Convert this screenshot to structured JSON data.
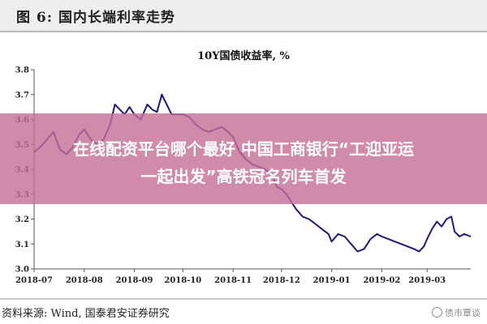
{
  "figure_title": "图 6:  国内长端利率走势",
  "chart_data": {
    "type": "line",
    "title": "10Y国债收益率,  %",
    "ylim": [
      3.0,
      3.8
    ],
    "y_ticks": [
      "3.0",
      "3.1",
      "3.2",
      "3.3",
      "3.4",
      "3.5",
      "3.6",
      "3.7",
      "3.8"
    ],
    "x_ticks": [
      "2018-07",
      "2018-08",
      "2018-09",
      "2018-10",
      "2018-11",
      "2018-12",
      "2019-01",
      "2019-02",
      "2019-03"
    ],
    "x_tick_days": [
      0,
      31,
      62,
      92,
      123,
      153,
      184,
      215,
      243
    ],
    "x_range_days": [
      0,
      270
    ],
    "series": [
      {
        "color": "#1f1a7a",
        "points": [
          [
            0,
            3.47
          ],
          [
            4,
            3.49
          ],
          [
            8,
            3.52
          ],
          [
            12,
            3.55
          ],
          [
            16,
            3.48
          ],
          [
            20,
            3.46
          ],
          [
            24,
            3.49
          ],
          [
            28,
            3.54
          ],
          [
            31,
            3.56
          ],
          [
            35,
            3.52
          ],
          [
            39,
            3.5
          ],
          [
            43,
            3.52
          ],
          [
            47,
            3.58
          ],
          [
            50,
            3.66
          ],
          [
            53,
            3.64
          ],
          [
            56,
            3.62
          ],
          [
            59,
            3.65
          ],
          [
            62,
            3.62
          ],
          [
            66,
            3.6
          ],
          [
            70,
            3.66
          ],
          [
            73,
            3.64
          ],
          [
            76,
            3.63
          ],
          [
            79,
            3.7
          ],
          [
            82,
            3.66
          ],
          [
            85,
            3.62
          ],
          [
            89,
            3.62
          ],
          [
            92,
            3.62
          ],
          [
            96,
            3.61
          ],
          [
            100,
            3.58
          ],
          [
            104,
            3.56
          ],
          [
            108,
            3.55
          ],
          [
            112,
            3.56
          ],
          [
            116,
            3.57
          ],
          [
            120,
            3.55
          ],
          [
            123,
            3.53
          ],
          [
            127,
            3.47
          ],
          [
            131,
            3.44
          ],
          [
            135,
            3.42
          ],
          [
            139,
            3.41
          ],
          [
            143,
            3.4
          ],
          [
            147,
            3.38
          ],
          [
            150,
            3.33
          ],
          [
            153,
            3.32
          ],
          [
            156,
            3.3
          ],
          [
            159,
            3.27
          ],
          [
            162,
            3.24
          ],
          [
            166,
            3.21
          ],
          [
            170,
            3.2
          ],
          [
            174,
            3.18
          ],
          [
            178,
            3.16
          ],
          [
            182,
            3.14
          ],
          [
            184,
            3.11
          ],
          [
            188,
            3.14
          ],
          [
            192,
            3.13
          ],
          [
            196,
            3.1
          ],
          [
            200,
            3.07
          ],
          [
            204,
            3.08
          ],
          [
            208,
            3.12
          ],
          [
            212,
            3.14
          ],
          [
            215,
            3.13
          ],
          [
            219,
            3.12
          ],
          [
            223,
            3.11
          ],
          [
            227,
            3.1
          ],
          [
            231,
            3.09
          ],
          [
            235,
            3.08
          ],
          [
            238,
            3.07
          ],
          [
            241,
            3.09
          ],
          [
            243,
            3.12
          ],
          [
            246,
            3.16
          ],
          [
            249,
            3.19
          ],
          [
            252,
            3.17
          ],
          [
            255,
            3.2
          ],
          [
            258,
            3.21
          ],
          [
            260,
            3.15
          ],
          [
            263,
            3.13
          ],
          [
            266,
            3.14
          ],
          [
            270,
            3.13
          ]
        ]
      }
    ]
  },
  "overlay": {
    "line1": "在线配资平台哪个最好 中国工商银行“工迎亚运",
    "line2": "一起出发”高铁冠名列车首发"
  },
  "source": "资料来源:  Wind,  国泰君安证券研究",
  "watermark": "债市覃谈"
}
